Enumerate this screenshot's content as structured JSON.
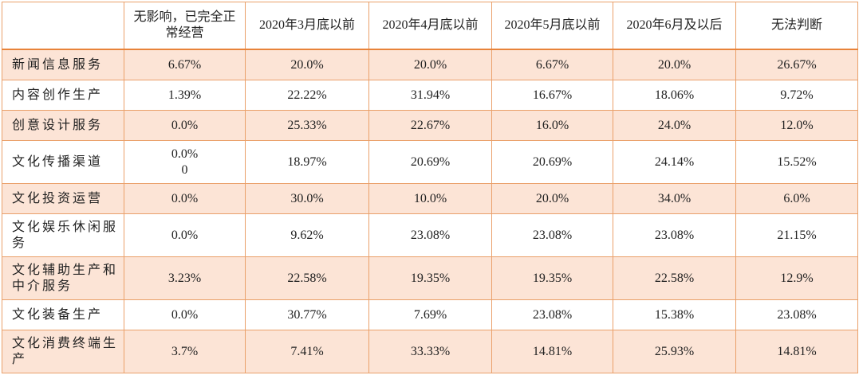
{
  "table": {
    "header": [
      "",
      "无影响，已完全正常经营",
      "2020年3月底以前",
      "2020年4月底以前",
      "2020年5月底以前",
      "2020年6月及以后",
      "无法判断"
    ],
    "rows": [
      [
        "新闻信息服务",
        "6.67%",
        "20.0%",
        "20.0%",
        "6.67%",
        "20.0%",
        "26.67%"
      ],
      [
        "内容创作生产",
        "1.39%",
        "22.22%",
        "31.94%",
        "16.67%",
        "18.06%",
        "9.72%"
      ],
      [
        "创意设计服务",
        "0.0%",
        "25.33%",
        "22.67%",
        "16.0%",
        "24.0%",
        "12.0%"
      ],
      [
        "文化传播渠道",
        "0.0%\n0",
        "18.97%",
        "20.69%",
        "20.69%",
        "24.14%",
        "15.52%"
      ],
      [
        "文化投资运营",
        "0.0%",
        "30.0%",
        "10.0%",
        "20.0%",
        "34.0%",
        "6.0%"
      ],
      [
        "文化娱乐休闲服务",
        "0.0%",
        "9.62%",
        "23.08%",
        "23.08%",
        "23.08%",
        "21.15%"
      ],
      [
        "文化辅助生产和中介服务",
        "3.23%",
        "22.58%",
        "19.35%",
        "19.35%",
        "22.58%",
        "12.9%"
      ],
      [
        "文化装备生产",
        "0.0%",
        "30.77%",
        "7.69%",
        "23.08%",
        "15.38%",
        "23.08%"
      ],
      [
        "文化消费终端生产",
        "3.7%",
        "7.41%",
        "33.33%",
        "14.81%",
        "25.93%",
        "14.81%"
      ]
    ]
  }
}
